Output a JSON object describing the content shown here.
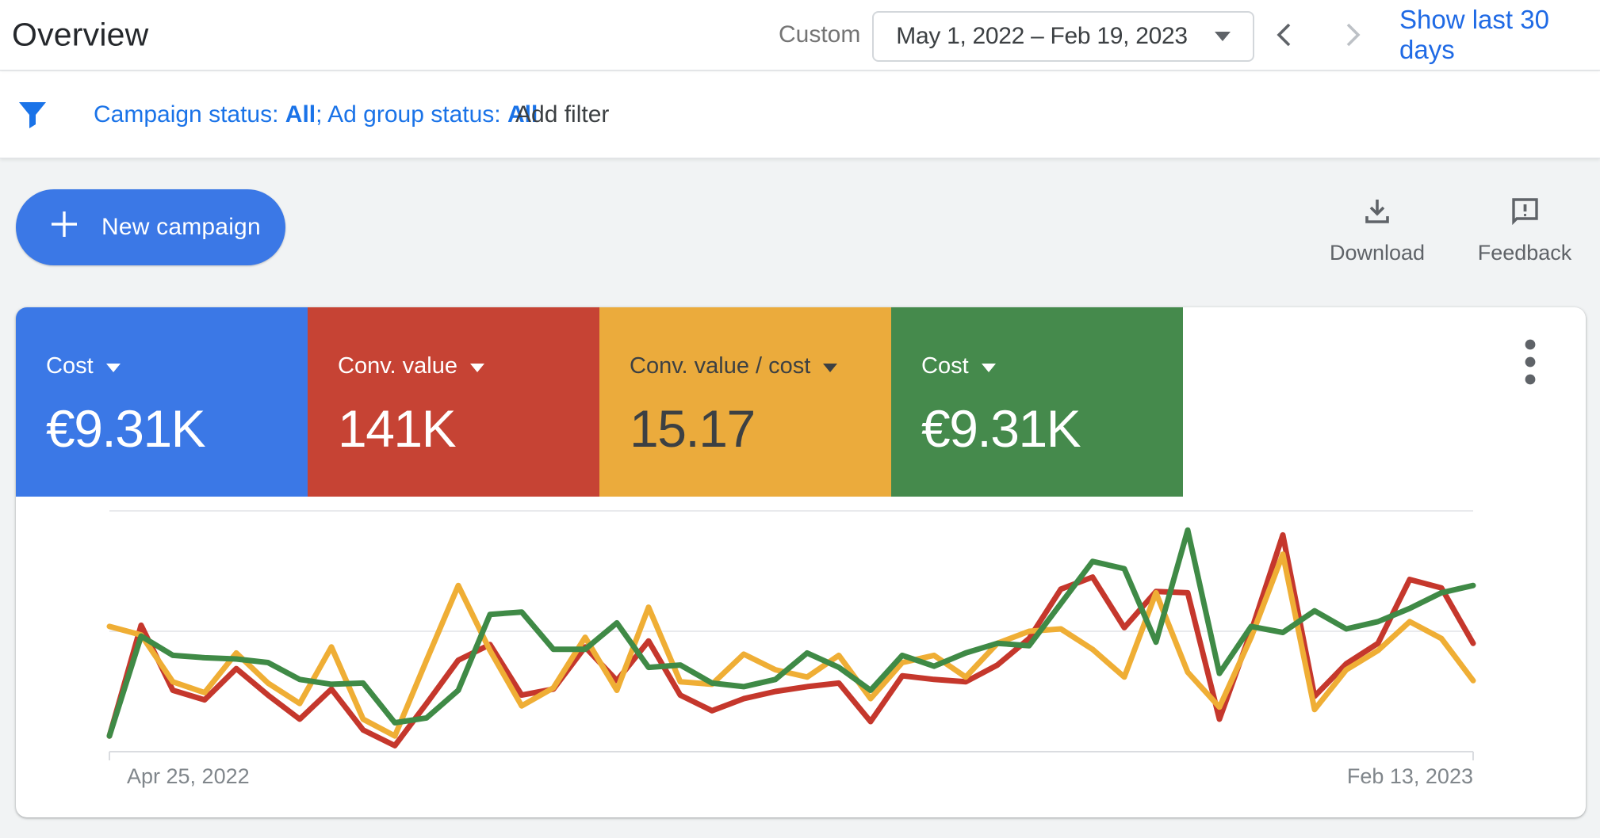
{
  "header": {
    "title": "Overview",
    "date_filter_mode": "Custom",
    "date_range": "May 1, 2022 – Feb 19, 2023",
    "show_last_30_days": "Show last 30 days"
  },
  "filter_bar": {
    "campaign_status_label": "Campaign status: ",
    "campaign_status_value": "All",
    "separator": "; ",
    "ad_group_status_label": "Ad group status: ",
    "ad_group_status_value": "All",
    "add_filter_label": "Add filter"
  },
  "actions": {
    "new_campaign_label": "New campaign",
    "download_label": "Download",
    "feedback_label": "Feedback"
  },
  "scorecards": [
    {
      "label": "Cost",
      "value": "€9.31K",
      "bg": "#3b78e6",
      "fg": "#ffffff"
    },
    {
      "label": "Conv. value",
      "value": "141K",
      "bg": "#c64334",
      "fg": "#ffffff"
    },
    {
      "label": "Conv. value / cost",
      "value": "15.17",
      "bg": "#ebab3c",
      "fg": "#3c4043"
    },
    {
      "label": "Cost",
      "value": "€9.31K",
      "bg": "#458a4c",
      "fg": "#ffffff"
    }
  ],
  "chart_data": {
    "type": "line",
    "title": "",
    "x_axis": {
      "start_label": "Apr 25, 2022",
      "end_label": "Feb 13, 2023",
      "points": 44,
      "interval": "weekly"
    },
    "y_axis": {
      "labels_shown": false,
      "unit": "relative (horizontal gridlines at 0, 1 and 2)",
      "ylim": [
        0,
        2.2
      ],
      "gridlines": [
        0,
        1,
        2
      ]
    },
    "legend_position": "none",
    "grid": true,
    "note": "Blue 'Cost' series coincides with the green 'Cost' series (same metric selected twice), so only three distinct lines are visible.",
    "series": [
      {
        "name": "Conv. value",
        "color": "#c5372c",
        "values": [
          0.13,
          1.05,
          0.51,
          0.43,
          0.69,
          0.47,
          0.27,
          0.52,
          0.18,
          0.05,
          0.4,
          0.76,
          0.89,
          0.47,
          0.52,
          0.87,
          0.59,
          0.92,
          0.47,
          0.34,
          0.44,
          0.5,
          0.54,
          0.57,
          0.25,
          0.63,
          0.6,
          0.58,
          0.72,
          0.94,
          1.35,
          1.45,
          1.03,
          1.33,
          1.32,
          0.27,
          1.0,
          1.8,
          0.46,
          0.73,
          0.9,
          1.43,
          1.36,
          0.9
        ]
      },
      {
        "name": "Conv. value / cost",
        "color": "#efae35",
        "values": [
          1.04,
          0.97,
          0.58,
          0.49,
          0.82,
          0.57,
          0.4,
          0.87,
          0.27,
          0.13,
          0.76,
          1.38,
          0.84,
          0.38,
          0.53,
          0.95,
          0.51,
          1.2,
          0.58,
          0.56,
          0.81,
          0.68,
          0.62,
          0.8,
          0.44,
          0.74,
          0.8,
          0.62,
          0.9,
          1.0,
          1.02,
          0.85,
          0.62,
          1.32,
          0.66,
          0.37,
          0.95,
          1.64,
          0.35,
          0.68,
          0.84,
          1.08,
          0.94,
          0.59
        ]
      },
      {
        "name": "Cost",
        "color": "#3f8a46",
        "values": [
          0.13,
          0.96,
          0.8,
          0.78,
          0.77,
          0.74,
          0.6,
          0.56,
          0.57,
          0.24,
          0.28,
          0.51,
          1.14,
          1.16,
          0.85,
          0.85,
          1.07,
          0.7,
          0.72,
          0.57,
          0.54,
          0.6,
          0.82,
          0.7,
          0.51,
          0.8,
          0.71,
          0.82,
          0.9,
          0.88,
          1.23,
          1.58,
          1.52,
          0.91,
          1.84,
          0.65,
          1.04,
          0.99,
          1.17,
          1.02,
          1.08,
          1.19,
          1.32,
          1.38
        ]
      }
    ]
  }
}
